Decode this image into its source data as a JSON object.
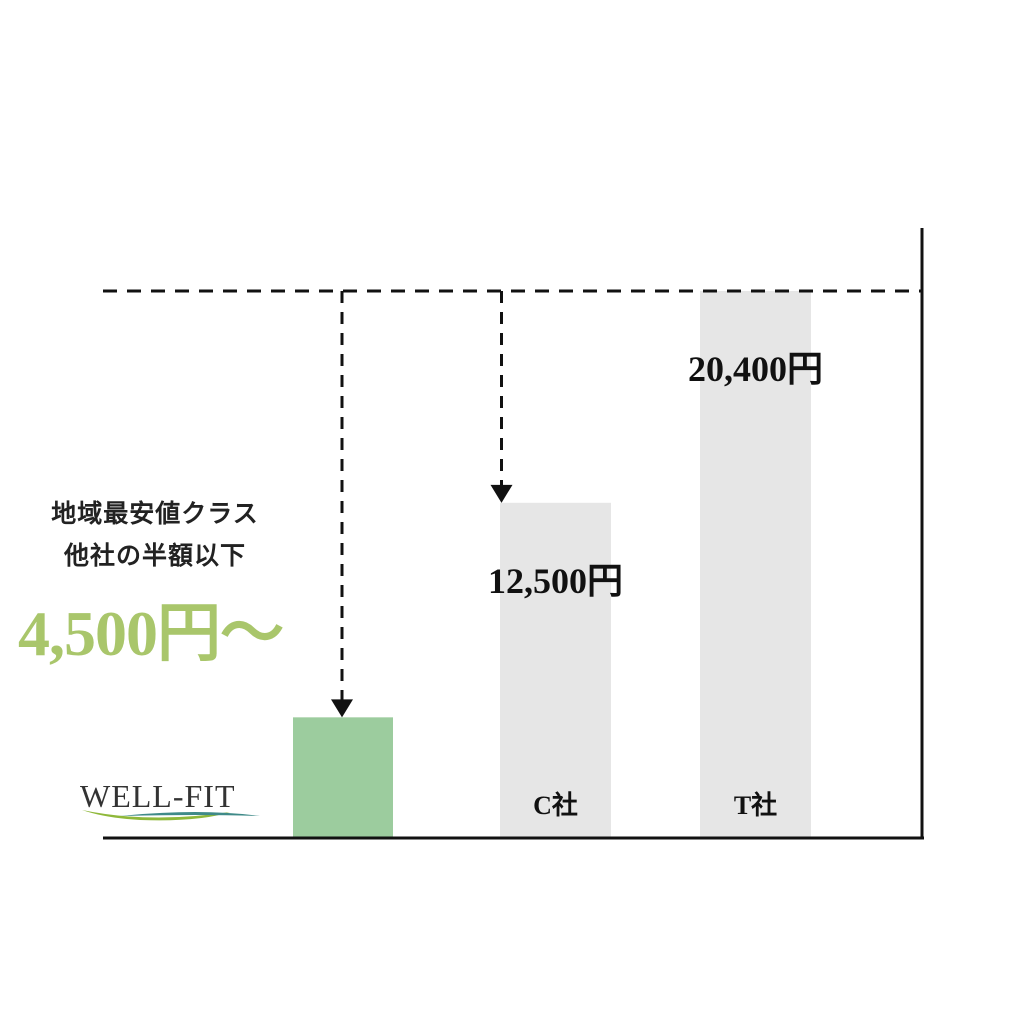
{
  "promo": {
    "line1": "地域最安値クラス",
    "line2": "他社の半額以下",
    "price": "4,500円～",
    "price_color": "#a9c66b"
  },
  "brand": {
    "name": "WELL-FIT",
    "swoosh_colors": [
      "#8fb83a",
      "#3f8a88"
    ]
  },
  "chart_data": {
    "type": "bar",
    "categories": [
      "",
      "C社",
      "T社"
    ],
    "values": [
      4500,
      12500,
      20400
    ],
    "value_labels": [
      "",
      "12,500円",
      "20,400円"
    ],
    "colors": [
      "#9ccc9e",
      "#e6e6e6",
      "#e6e6e6"
    ],
    "ylim": [
      0,
      20400
    ],
    "reference_line": 20400,
    "arrows_to": [
      0,
      1
    ],
    "title": "",
    "xlabel": "",
    "ylabel": ""
  }
}
